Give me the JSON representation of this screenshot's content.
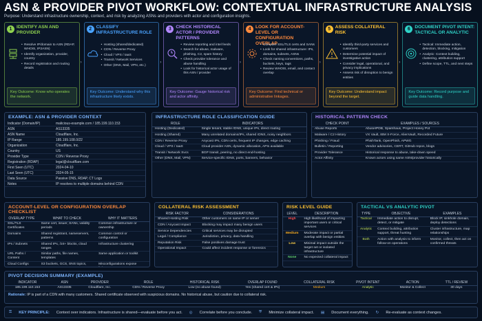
{
  "title": "ASN & PROVIDER PIVOT WORKFLOW: CONTEXTUAL INFRASTRUCTURE ANALYSIS",
  "subtitle": "Purpose: Understand infrastructure ownership, context, and risk by analyzing ASNs and providers with actor and configuration insights.",
  "steps": [
    {
      "num": "1",
      "title": "IDENTIFY ASN AND PROVIDER",
      "color": "#8fd14f",
      "icon": "server-network-icon",
      "bullets": [
        "Resolve IP/domain to ASN (RDAP, WHOIS, IP2ASN)",
        "Identify organization, provider, country",
        "Record registration and routing details"
      ],
      "outcome": "Key Outcome: Know who operates the network."
    },
    {
      "num": "2",
      "title": "CLASSIFY INFRASTRUCTURE ROLE",
      "color": "#4aa3ff",
      "icon": "cloud-icon",
      "bullets": [
        "Hosting (shared/dedicated)",
        "CDN / Reverse Proxy",
        "Cloud / VPS / IaaS",
        "Transit / Network Services",
        "Other (DNS, Mail, VPN, etc.)"
      ],
      "outcome": "Key Outcome: Understand why this infrastructure likely exists."
    },
    {
      "num": "3",
      "title": "CHECK HISTORICAL ACTOR / PROVIDER PATTERNS",
      "color": "#b388ff",
      "icon": "history-search-icon",
      "bullets": [
        "Review reporting and intel feeds",
        "Search for abuse, malware, phishing, C2, spam history",
        "Check provider tolerance and abuse handling",
        "Look for historical actor usage of this ASN / provider"
      ],
      "outcome": "Key Outcome: Gauge historical risk and actor affinity."
    },
    {
      "num": "4",
      "title": "LOOK FOR ACCOUNT-LEVEL OR CONFIGURATION OVERLAP",
      "color": "#ff8a3d",
      "icon": "gear-icon",
      "bullets": [
        "Compare SSL/TLS certs and SANs",
        "Look for shared infrastructure: IPs, domains, subnets, ASNs",
        "Check naming conventions, paths, buckets, keys, tags",
        "Review WHOIS, email, and contact overlap"
      ],
      "outcome": "Key Outcome: Find technical or administrative linkages."
    },
    {
      "num": "5",
      "title": "ASSESS COLLATERAL RISK",
      "color": "#ffc233",
      "icon": "warning-icon",
      "bullets": [
        "Identify third-party services and customers",
        "Determine potential impact of investigative action",
        "Consider legal, operational, and privacy implications",
        "Assess risk of disruption to benign entities"
      ],
      "outcome": "Key Outcome: Understand impact beyond the target."
    },
    {
      "num": "6",
      "title": "DOCUMENT PIVOT INTENT: TACTICAL OR ANALYTIC",
      "color": "#2fd3c8",
      "icon": "target-icon",
      "bullets": [
        "Tactical: Immediate action, detection, blocking, mitigation",
        "Analytic: Context building, clustering, attribution support",
        "Define scope, TTL, and next steps"
      ],
      "outcome": "Key Outcome: Record purpose and guide data handling."
    }
  ],
  "example": {
    "title": "EXAMPLE: ASN & PROVIDER CONTEXT",
    "rows": [
      [
        "Indicator (Domain/IP)",
        "malicious-example.com / 185.199.110.153"
      ],
      [
        "ASN",
        "AS13335"
      ],
      [
        "ASN Name",
        "Cloudflare, Inc."
      ],
      [
        "IP Range",
        "185.199.108.0/22"
      ],
      [
        "Organization",
        "Cloudflare, Inc."
      ],
      [
        "Country",
        "US"
      ],
      [
        "Provider Type",
        "CDN / Reverse Proxy"
      ],
      [
        "Registration (RDAP)",
        "legal@cloudflare.com"
      ],
      [
        "First Seen (UTC)",
        "2024-04-10"
      ],
      [
        "Last Seen (UTC)",
        "2024-05-15"
      ],
      [
        "Data Source",
        "Passive DNS, RDAP, CT Logs"
      ],
      [
        "Notes",
        "IP resolves to multiple domains behind CDN"
      ]
    ]
  },
  "role": {
    "title": "INFRASTRUCTURE ROLE CLASSIFICATION GUIDE",
    "headers": [
      "ROLE",
      "INDICATORS"
    ],
    "rows": [
      [
        "Hosting (Dedicated)",
        "Single tenant, stable rDNS, unique IPs, direct routing"
      ],
      [
        "Hosting (Shared)",
        "Many unrelated domains/IPs, shared rDNS, noisy neighbors"
      ],
      [
        "CDN / Reverse Proxy",
        "Anycast IPs, CDN certs, frequent IP changes, edge caching"
      ],
      [
        "Cloud / VPS / IaaS",
        "Cloud provider ASN, dynamic allocation, APIs available"
      ],
      [
        "Transit / Network Svcs",
        "BGP transit, peering, no direct end-hosting"
      ],
      [
        "Other (DNS, Mail, VPN)",
        "Service-specific rDNS, ports, banners, behavior"
      ]
    ]
  },
  "hist": {
    "title": "HISTORICAL PATTERN CHECK",
    "headers": [
      "CHECK POINT",
      "EXAMPLES / SOURCES"
    ],
    "rows": [
      [
        "Abuse Reports",
        "AbuseIPDB, Spamhaus, Project Honey Pot"
      ],
      [
        "Malware / C2 History",
        "VX Vault, IBM X-Force, AlienVault, Recorded Future"
      ],
      [
        "Phishing / Fraud",
        "PhishTank, OpenPhish, APWG"
      ],
      [
        "Bulletin / Reporting",
        "Vendor advisories, CERT, GitHub repos, blogs"
      ],
      [
        "Provider Tolerance",
        "Historical response to abuse, take-down speed"
      ],
      [
        "Actor Affinity",
        "Known actors using same ASN/provider historically"
      ]
    ]
  },
  "overlap": {
    "title": "ACCOUNT-LEVEL OR CONFIGURATION OVERLAP CHECKLIST",
    "headers": [
      "OVERLAP TYPE",
      "WHAT TO CHECK",
      "WHY IT MATTERS"
    ],
    "rows": [
      [
        "SSL/TLS Certificates",
        "Same cert, issuer, SANs, validity periods",
        "Common infrastructure or ownership"
      ],
      [
        "Domains",
        "Shared registrant, nameservers, patterns",
        "Common control or configuration"
      ],
      [
        "IPs / Subnets",
        "Shared IPs, /24+ blocks, cloud ranges",
        "Infrastructure clustering"
      ],
      [
        "URL Paths / Content",
        "Similar paths, file names, templates",
        "Same application or toolkit"
      ],
      [
        "Cloud Configs",
        "S3 buckets, GCS, SNS topics, tags",
        "Misconfigurations expose linkages"
      ],
      [
        "WHOIS / Contact",
        "Same emails, orgs, phone, address",
        "Administrative overlap"
      ],
      [
        "Code / Artifacts",
        "Same strings, versions, keys, comments",
        "Reuse of tools or infrastructure"
      ]
    ]
  },
  "collateral": {
    "title": "COLLATERAL RISK ASSESSMENT",
    "headers": [
      "RISK FACTOR",
      "CONSIDERATIONS"
    ],
    "rows": [
      [
        "Shared Hosting Risk",
        "Other customers on same IP or server"
      ],
      [
        "CDN / Anycast Impact",
        "Blocking may impact many benign users"
      ],
      [
        "Service Dependencies",
        "Critical services may be disrupted"
      ],
      [
        "Legal / Compliance",
        "Jurisdiction, privacy, data handling"
      ],
      [
        "Reputation Risk",
        "False positives damage trust"
      ],
      [
        "Operational Impact",
        "Could affect incident response or forensics"
      ]
    ]
  },
  "levels": {
    "title": "RISK LEVEL GUIDE",
    "headers": [
      "LEVEL",
      "DESCRIPTION"
    ],
    "rows": [
      [
        "High",
        "High likelihood of impacting important users or critical services",
        "#ff4d4d"
      ],
      [
        "Medium",
        "Moderate impact or partial overlap with benign entities",
        "#ffb020"
      ],
      [
        "Low",
        "Minimal impact outside the target set or isolated infrastructure",
        "#ffd24a"
      ],
      [
        "None",
        "No expected collateral impact",
        "#62d26f"
      ]
    ]
  },
  "tactical": {
    "title": "TACTICAL VS ANALYTIC PIVOT",
    "headers": [
      "TYPE",
      "OBJECTIVE",
      "EXAMPLES"
    ],
    "rows": [
      [
        "Tactical",
        "Immediate action to disrupt, detect, or mitigate",
        "Block IP, sinkhole domain, deploy detections"
      ],
      [
        "Analytic",
        "Context building, attribution support, threat hunting",
        "Cluster infrastructure, map relationships"
      ],
      [
        "Both",
        "Action with analysis to inform follow-on operations",
        "Monitor, collect, then act on confirmed threats"
      ]
    ]
  },
  "summary": {
    "title": "PIVOT DECISION SUMMARY (EXAMPLE)",
    "headers": [
      "Indicator",
      "ASN",
      "Provider",
      "Role",
      "Historical Risk",
      "Overlap Found",
      "Collateral Risk",
      "Pivot Intent",
      "Action",
      "TTL / Review"
    ],
    "row": [
      "185.199.110.153",
      "AS13335",
      "Cloudflare, Inc.",
      "CDN / Reverse Proxy",
      "Low (no abuse found)",
      "Yes (shared cert & IPs)",
      "Medium",
      "Analytic",
      "Monitor & Collect",
      "30 days"
    ],
    "rationale_label": "Rationale:",
    "rationale": "IP is part of a CDN with many customers. Shared certificate observed with suspicious domains. No historical abuse, but caution due to collateral risk."
  },
  "principle": {
    "label": "KEY PRINCIPLE:",
    "text": "Context over indicators. Infrastructure is shared—evaluate before you act.",
    "items": [
      "Correlate before you conclude.",
      "Minimize collateral impact.",
      "Document everything.",
      "Re-evaluate as context changes."
    ]
  }
}
